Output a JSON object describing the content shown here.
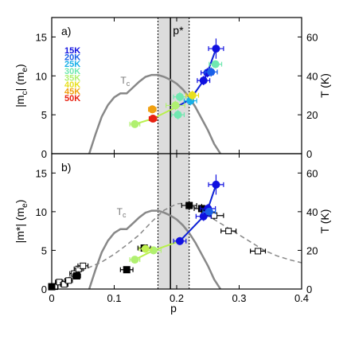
{
  "chart_data": [
    {
      "type": "scatter",
      "panel": "a)",
      "xlabel": "p",
      "ylabel_left": "|m_c| (m_e)",
      "ylabel_right": "T (K)",
      "xlim": [
        0,
        0.4
      ],
      "ylim_left": [
        0,
        17.5
      ],
      "ylim_right": [
        0,
        70
      ],
      "x_ticks": [],
      "y_ticks_left": [
        "0",
        "5",
        "10",
        "15"
      ],
      "y_ticks_right": [
        "0",
        "20",
        "40",
        "60"
      ],
      "grid": false,
      "pstar_label": "p*",
      "pstar_band": [
        0.17,
        0.22
      ],
      "pstar_line": 0.19,
      "tc_label": "T",
      "tc_label_sub": "c",
      "tc_dome": {
        "x": [
          0.06,
          0.07,
          0.08,
          0.09,
          0.1,
          0.11,
          0.12,
          0.13,
          0.14,
          0.15,
          0.16,
          0.17,
          0.18,
          0.19,
          0.2,
          0.21,
          0.22,
          0.23,
          0.24,
          0.25,
          0.26,
          0.27
        ],
        "T": [
          0,
          10,
          19,
          25,
          29,
          31,
          31,
          34,
          37,
          39.5,
          40.5,
          40.5,
          39.5,
          38,
          36,
          33,
          29,
          24,
          18,
          12,
          5,
          0
        ]
      },
      "legend": [
        {
          "label": "15K",
          "color": "#1010e0"
        },
        {
          "label": "20K",
          "color": "#1a60e8"
        },
        {
          "label": "25K",
          "color": "#18b0e8"
        },
        {
          "label": "30K",
          "color": "#70e8b0"
        },
        {
          "label": "35K",
          "color": "#b0f070"
        },
        {
          "label": "40K",
          "color": "#e8e020"
        },
        {
          "label": "45K",
          "color": "#f0a010"
        },
        {
          "label": "50K",
          "color": "#e82010"
        }
      ],
      "series": [
        {
          "name": "15K",
          "color": "#1010e0",
          "points": [
            {
              "x": 0.263,
              "y": 13.5,
              "ex": 0.012,
              "ey": 1.3
            },
            {
              "x": 0.249,
              "y": 10.4,
              "ex": 0.01,
              "ey": 0.6
            },
            {
              "x": 0.243,
              "y": 9.4,
              "ex": 0.01,
              "ey": 0.6
            }
          ]
        },
        {
          "name": "20K",
          "color": "#1a60e8",
          "points": [
            {
              "x": 0.255,
              "y": 10.5,
              "ex": 0.01,
              "ey": 0.6
            }
          ]
        },
        {
          "name": "25K",
          "color": "#18b0e8",
          "points": [
            {
              "x": 0.222,
              "y": 6.8,
              "ex": 0.01,
              "ey": 0.6
            }
          ]
        },
        {
          "name": "30K",
          "color": "#70e8b0",
          "points": [
            {
              "x": 0.262,
              "y": 11.5,
              "ex": 0.01,
              "ey": 0.5
            },
            {
              "x": 0.205,
              "y": 7.3,
              "ex": 0.01,
              "ey": 0.6
            },
            {
              "x": 0.202,
              "y": 5.0,
              "ex": 0.01,
              "ey": 0.6
            }
          ]
        },
        {
          "name": "35K",
          "color": "#b0f070",
          "points": [
            {
              "x": 0.133,
              "y": 3.8,
              "ex": 0.008,
              "ey": 0.4
            },
            {
              "x": 0.198,
              "y": 6.2,
              "ex": 0.015,
              "ey": 0.6
            }
          ]
        },
        {
          "name": "40K",
          "color": "#e8e020",
          "points": [
            {
              "x": 0.225,
              "y": 7.5,
              "ex": 0.01,
              "ey": 0.6
            }
          ]
        },
        {
          "name": "45K",
          "color": "#f0a010",
          "points": [
            {
              "x": 0.161,
              "y": 5.7,
              "ex": 0.006,
              "ey": 0.5
            }
          ]
        },
        {
          "name": "50K",
          "color": "#e82010",
          "points": [
            {
              "x": 0.162,
              "y": 4.5,
              "ex": 0.006,
              "ey": 0.4
            }
          ]
        }
      ],
      "connector": [
        {
          "x": 0.133,
          "y": 3.8
        },
        {
          "x": 0.162,
          "y": 4.5
        },
        {
          "x": 0.202,
          "y": 6.1
        },
        {
          "x": 0.222,
          "y": 7.0
        },
        {
          "x": 0.243,
          "y": 9.4
        },
        {
          "x": 0.249,
          "y": 10.4
        },
        {
          "x": 0.263,
          "y": 13.5
        }
      ]
    },
    {
      "type": "scatter",
      "panel": "b)",
      "xlabel": "p",
      "ylabel_left": "|m*| (m_e)",
      "ylabel_right": "T (K)",
      "xlim": [
        0,
        0.4
      ],
      "ylim_left": [
        0,
        17.5
      ],
      "ylim_right": [
        0,
        70
      ],
      "x_ticks": [
        "0",
        "0.1",
        "0.2",
        "0.3",
        "0.4"
      ],
      "y_ticks_left": [
        "0",
        "5",
        "10",
        "15"
      ],
      "y_ticks_right": [
        "0",
        "20",
        "40",
        "60"
      ],
      "grid": false,
      "tc_label": "T",
      "tc_label_sub": "c",
      "tc_dome": {
        "x": [
          0.06,
          0.07,
          0.08,
          0.09,
          0.1,
          0.11,
          0.12,
          0.13,
          0.14,
          0.15,
          0.16,
          0.17,
          0.18,
          0.19,
          0.2,
          0.21,
          0.22,
          0.23,
          0.24,
          0.25,
          0.26,
          0.27
        ],
        "T": [
          0,
          10,
          19,
          25,
          29,
          31,
          31,
          34,
          37,
          39.5,
          40.5,
          40.5,
          39.5,
          38,
          36,
          33,
          29,
          24,
          18,
          12,
          5,
          0
        ]
      },
      "pstar_band": [
        0.17,
        0.22
      ],
      "pstar_line": 0.19,
      "dashed_curve": {
        "x": [
          0.0,
          0.02,
          0.04,
          0.06,
          0.08,
          0.1,
          0.12,
          0.14,
          0.16,
          0.18,
          0.2,
          0.21,
          0.22,
          0.23,
          0.24,
          0.26,
          0.28,
          0.3,
          0.32,
          0.34,
          0.36,
          0.38,
          0.4
        ],
        "y": [
          0.5,
          1.2,
          2.0,
          2.8,
          3.5,
          4.5,
          5.7,
          7.0,
          8.7,
          10.2,
          11.0,
          11.1,
          10.9,
          10.5,
          10.0,
          9.0,
          8.0,
          7.0,
          6.0,
          5.0,
          4.3,
          3.8,
          3.4
        ]
      },
      "open_squares": [
        {
          "x": 0.005,
          "y": 0.3,
          "ex": 0.005,
          "ey": 0.3
        },
        {
          "x": 0.012,
          "y": 0.9,
          "ex": 0.006,
          "ey": 0.3
        },
        {
          "x": 0.02,
          "y": 0.6,
          "ex": 0.006,
          "ey": 0.3
        },
        {
          "x": 0.027,
          "y": 1.1,
          "ex": 0.006,
          "ey": 0.3
        },
        {
          "x": 0.036,
          "y": 2.0,
          "ex": 0.007,
          "ey": 0.3
        },
        {
          "x": 0.043,
          "y": 2.6,
          "ex": 0.007,
          "ey": 0.3
        },
        {
          "x": 0.05,
          "y": 3.0,
          "ex": 0.008,
          "ey": 0.3
        },
        {
          "x": 0.26,
          "y": 9.5,
          "ex": 0.015,
          "ey": 0.5
        },
        {
          "x": 0.283,
          "y": 7.5,
          "ex": 0.012,
          "ey": 0.4
        },
        {
          "x": 0.33,
          "y": 4.9,
          "ex": 0.012,
          "ey": 0.3
        }
      ],
      "filled_squares": [
        {
          "x": 0.0,
          "y": 0.3,
          "ex": 0.003,
          "ey": 0.2
        },
        {
          "x": 0.04,
          "y": 1.7,
          "ex": 0.006,
          "ey": 0.3
        },
        {
          "x": 0.12,
          "y": 2.5,
          "ex": 0.01,
          "ey": 0.3
        },
        {
          "x": 0.148,
          "y": 5.3,
          "ex": 0.01,
          "ey": 0.4
        },
        {
          "x": 0.22,
          "y": 10.8,
          "ex": 0.012,
          "ey": 0.6
        },
        {
          "x": 0.24,
          "y": 10.4,
          "ex": 0.012,
          "ey": 0.6
        }
      ],
      "series": [
        {
          "name": "15K",
          "color": "#1010e0",
          "points": [
            {
              "x": 0.263,
              "y": 13.5,
              "ex": 0.012,
              "ey": 1.3
            },
            {
              "x": 0.25,
              "y": 10.4,
              "ex": 0.012,
              "ey": 0.6
            },
            {
              "x": 0.243,
              "y": 9.4,
              "ex": 0.012,
              "ey": 0.6
            },
            {
              "x": 0.205,
              "y": 6.2,
              "ex": 0.01,
              "ey": 0.5
            }
          ]
        },
        {
          "name": "20K",
          "color": "#1a60e8",
          "points": [
            {
              "x": 0.252,
              "y": 10.0,
              "ex": 0.01,
              "ey": 0.5
            }
          ]
        },
        {
          "name": "35K",
          "color": "#b0f070",
          "points": [
            {
              "x": 0.133,
              "y": 3.8,
              "ex": 0.008,
              "ey": 0.4
            },
            {
              "x": 0.163,
              "y": 5.0,
              "ex": 0.012,
              "ey": 0.5
            }
          ]
        },
        {
          "name": "45K",
          "color": "#c0f050",
          "points": [
            {
              "x": 0.15,
              "y": 5.2,
              "ex": 0.01,
              "ey": 0.5
            }
          ]
        }
      ],
      "connector": [
        {
          "x": 0.133,
          "y": 3.8
        },
        {
          "x": 0.163,
          "y": 5.0
        },
        {
          "x": 0.205,
          "y": 6.2
        },
        {
          "x": 0.243,
          "y": 9.4
        },
        {
          "x": 0.25,
          "y": 10.4
        },
        {
          "x": 0.263,
          "y": 13.5
        }
      ]
    }
  ]
}
